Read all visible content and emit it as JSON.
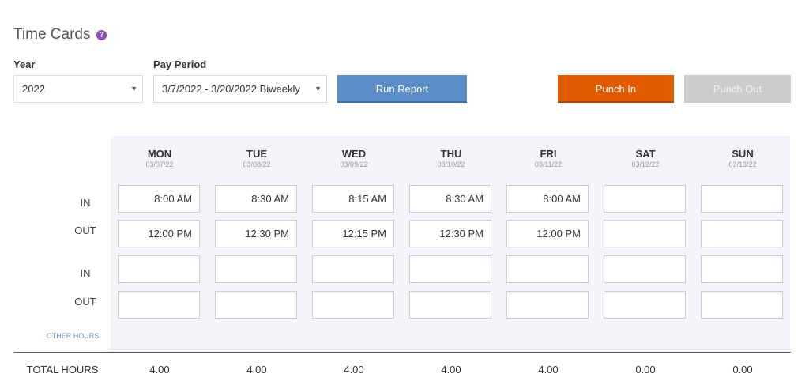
{
  "header": {
    "title": "Time Cards",
    "help_icon": "?"
  },
  "filters": {
    "year": {
      "label": "Year",
      "value": "2022"
    },
    "pay_period": {
      "label": "Pay Period",
      "value": "3/7/2022 - 3/20/2022 Biweekly"
    }
  },
  "buttons": {
    "run_report": "Run Report",
    "punch_in": "Punch In",
    "punch_out": "Punch Out"
  },
  "days": [
    {
      "name": "MON",
      "date": "03/07/22"
    },
    {
      "name": "TUE",
      "date": "03/08/22"
    },
    {
      "name": "WED",
      "date": "03/09/22"
    },
    {
      "name": "THU",
      "date": "03/10/22"
    },
    {
      "name": "FRI",
      "date": "03/11/22"
    },
    {
      "name": "SAT",
      "date": "03/12/22"
    },
    {
      "name": "SUN",
      "date": "03/13/22"
    }
  ],
  "rows": [
    {
      "label": "IN",
      "cells": [
        "8:00 AM",
        "8:30 AM",
        "8:15 AM",
        "8:30 AM",
        "8:00 AM",
        null,
        null
      ]
    },
    {
      "label": "OUT",
      "cells": [
        "12:00 PM",
        "12:30 PM",
        "12:15 PM",
        "12:30 PM",
        "12:00 PM",
        null,
        null
      ]
    },
    {
      "label": "IN",
      "cells": [
        null,
        null,
        null,
        null,
        null,
        null,
        null
      ]
    },
    {
      "label": "OUT",
      "cells": [
        null,
        null,
        null,
        null,
        null,
        null,
        null
      ]
    }
  ],
  "other_hours": "OTHER HOURS",
  "totals": {
    "label": "TOTAL HOURS",
    "values": [
      "4.00",
      "4.00",
      "4.00",
      "4.00",
      "4.00",
      "0.00",
      "0.00"
    ]
  }
}
